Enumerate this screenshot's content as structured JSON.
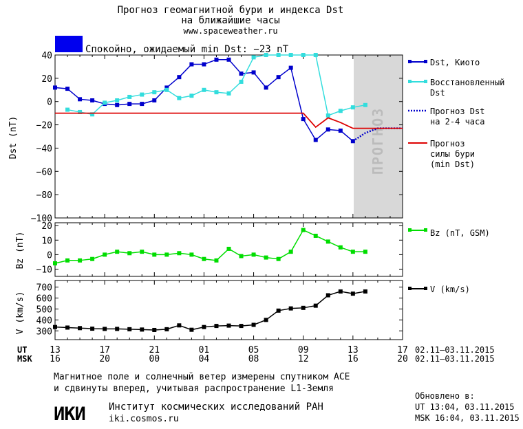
{
  "header": {
    "title_line1": "Прогноз геомагнитной бури и индекса Dst",
    "title_line2": "на ближайшие часы",
    "url": "www.spaceweather.ru",
    "status_color": "#0000ee",
    "status_text": "Спокойно, ожидаемый min Dst: −23 nT"
  },
  "colors": {
    "dst": "#0000cc",
    "restored": "#33dddd",
    "forecast": "#0000cc",
    "storm": "#dd0000",
    "bz": "#00dd00",
    "v": "#000000",
    "forecast_zone": "#d8d8d8"
  },
  "x_axis": {
    "ut_prefix": "UT",
    "msk_prefix": "MSK",
    "ut_ticks": [
      "13",
      "17",
      "21",
      "01",
      "05",
      "09",
      "13",
      "17"
    ],
    "msk_ticks": [
      "16",
      "20",
      "00",
      "04",
      "08",
      "12",
      "16",
      "20"
    ],
    "date_range_ut": "02.11–03.11.2015",
    "date_range_msk": "02.11–03.11.2015"
  },
  "chart_data": [
    {
      "type": "line",
      "ylabel": "Dst (nT)",
      "ylim": [
        -100,
        40
      ],
      "yticks": [
        40,
        20,
        0,
        -20,
        -40,
        -60,
        -80,
        -100
      ],
      "xlim_hours_from_13ut": [
        0,
        28
      ],
      "forecast_zone_label": "ПРОГНОЗ",
      "forecast_zone_hours": [
        24,
        28
      ],
      "series": [
        {
          "name": "Dst, Киото",
          "x": [
            0,
            1,
            2,
            3,
            4,
            5,
            6,
            7,
            8,
            9,
            10,
            11,
            12,
            13,
            14,
            15,
            16,
            17,
            18,
            19,
            20,
            21,
            22,
            23,
            24
          ],
          "values": [
            12,
            11,
            2,
            1,
            -2,
            -3,
            -2,
            -2,
            1,
            12,
            21,
            32,
            32,
            36,
            36,
            24,
            25,
            12,
            21,
            29,
            -15,
            -33,
            -24,
            -25,
            -34
          ]
        },
        {
          "name": "Восстановленный Dst",
          "x": [
            1,
            2,
            3,
            4,
            5,
            6,
            7,
            8,
            9,
            10,
            11,
            12,
            13,
            14,
            15,
            16,
            17,
            18,
            19,
            20,
            21,
            22,
            23,
            24,
            25
          ],
          "values": [
            -7,
            -9,
            -11,
            -1,
            1,
            4,
            6,
            8,
            10,
            3,
            5,
            10,
            8,
            7,
            17,
            38,
            40,
            40,
            40,
            40,
            40,
            -12,
            -8,
            -5,
            -3
          ]
        },
        {
          "name": "Прогноз Dst на 2-4 часа",
          "x": [
            24,
            25,
            26,
            27,
            28
          ],
          "values": [
            -34,
            -27,
            -23,
            -23,
            -23
          ]
        },
        {
          "name": "Прогноз силы бури (min Dst)",
          "x": [
            0,
            20,
            21,
            22,
            23,
            24,
            28
          ],
          "values": [
            -10,
            -10,
            -22,
            -14,
            -18,
            -23,
            -23
          ]
        }
      ]
    },
    {
      "type": "line",
      "ylabel": "Bz (nT)",
      "ylim": [
        -15,
        22
      ],
      "yticks": [
        20,
        10,
        0,
        -10
      ],
      "series": [
        {
          "name": "Bz (nT, GSM)",
          "x": [
            0,
            1,
            2,
            3,
            4,
            5,
            6,
            7,
            8,
            9,
            10,
            11,
            12,
            13,
            14,
            15,
            16,
            17,
            18,
            19,
            20,
            21,
            22,
            23,
            24,
            25
          ],
          "values": [
            -6,
            -4,
            -4,
            -3,
            0,
            2,
            1,
            2,
            0,
            0,
            1,
            0,
            -3,
            -4,
            4,
            -1,
            0,
            -2,
            -3,
            2,
            17,
            13,
            9,
            5,
            2,
            2
          ]
        }
      ]
    },
    {
      "type": "line",
      "ylabel": "V (km/s)",
      "ylim": [
        220,
        760
      ],
      "yticks": [
        700,
        600,
        500,
        400,
        300
      ],
      "series": [
        {
          "name": "V (km/s)",
          "x": [
            0,
            1,
            2,
            3,
            4,
            5,
            6,
            7,
            8,
            9,
            10,
            11,
            12,
            13,
            14,
            15,
            16,
            17,
            18,
            19,
            20,
            21,
            22,
            23,
            24,
            25
          ],
          "values": [
            335,
            330,
            325,
            320,
            318,
            318,
            315,
            312,
            308,
            315,
            350,
            310,
            335,
            345,
            348,
            345,
            355,
            400,
            485,
            505,
            510,
            530,
            625,
            660,
            640,
            660
          ]
        }
      ]
    }
  ],
  "footer": {
    "note_line1": "Магнитное поле и солнечный ветер измерены спутником ACE",
    "note_line2": "и сдвинуты вперед, учитывая распространение L1-Земля",
    "updated_label": "Обновлено в:",
    "updated_ut": "UT   13:04, 03.11.2015",
    "updated_msk": "MSK 16:04, 03.11.2015",
    "logo_text": "ИКИ",
    "institute": "Институт космических исследований РАН",
    "institute_site": "iki.cosmos.ru"
  }
}
